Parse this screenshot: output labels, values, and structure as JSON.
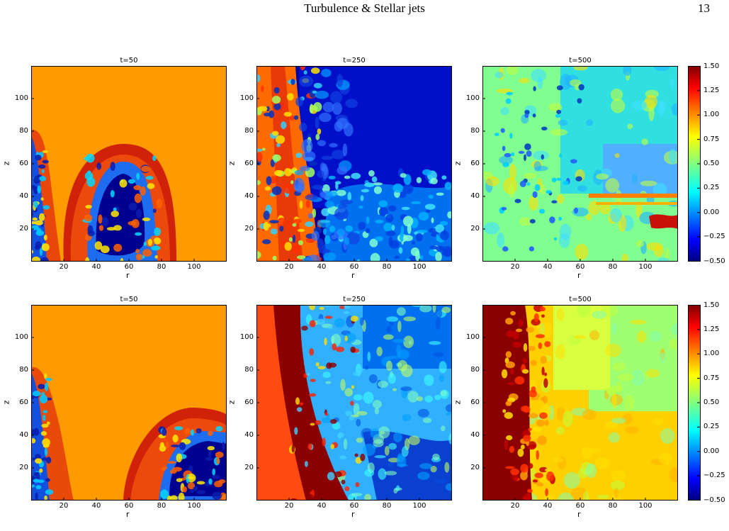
{
  "header": {
    "running_title": "Turbulence & Stellar jets",
    "page_number": "13"
  },
  "colorbar": {
    "ticks": [
      "1.50",
      "1.25",
      "1.00",
      "0.75",
      "0.50",
      "0.25",
      "0.00",
      "−0.25",
      "−0.50"
    ],
    "range": [
      -0.5,
      1.5
    ],
    "colormap": "jet"
  },
  "axes": {
    "xlabel": "r",
    "ylabel": "z",
    "xticks": [
      "20",
      "40",
      "60",
      "80",
      "100"
    ],
    "yticks": [
      "100",
      "80",
      "60",
      "40",
      "20"
    ],
    "xlim": [
      0,
      120
    ],
    "ylim": [
      0,
      120
    ]
  },
  "panels": [
    {
      "title": "t=50"
    },
    {
      "title": "t=250"
    },
    {
      "title": "t=500"
    },
    {
      "title": "t=50"
    },
    {
      "title": "t=250"
    },
    {
      "title": "t=500"
    }
  ],
  "colors": {
    "background_orange": "#ff9a00",
    "dark_red": "#8b0000",
    "dark_blue": "#00008f"
  }
}
